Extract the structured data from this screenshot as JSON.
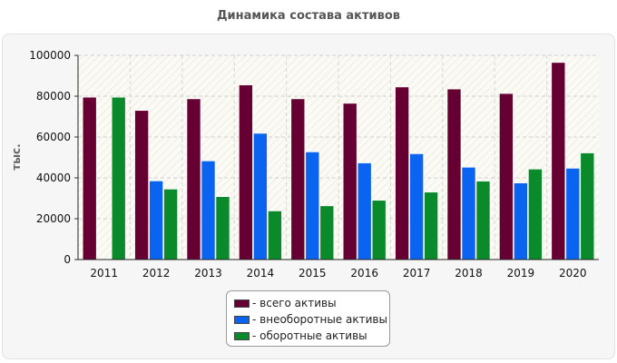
{
  "chart_data": {
    "type": "bar",
    "title": "Динамика состава активов",
    "ylabel": "тыс.",
    "xlabel": "",
    "ylim": [
      0,
      100000
    ],
    "yticks": [
      0,
      20000,
      40000,
      60000,
      80000,
      100000
    ],
    "grid": true,
    "legend_position": "bottom-center",
    "categories": [
      "2011",
      "2012",
      "2013",
      "2014",
      "2015",
      "2016",
      "2017",
      "2018",
      "2019",
      "2020"
    ],
    "series": [
      {
        "name": "- всего активы",
        "color": "#660033",
        "values": [
          79500,
          73000,
          78700,
          85500,
          78700,
          76500,
          84500,
          83500,
          81300,
          96500
        ]
      },
      {
        "name": "- внеоборотные активы",
        "color": "#0a64f0",
        "values": [
          300,
          38500,
          48300,
          61800,
          52700,
          47300,
          51800,
          45200,
          37500,
          44700
        ]
      },
      {
        "name": "- оборотные активы",
        "color": "#0a8a2a",
        "values": [
          79500,
          34500,
          30800,
          23800,
          26300,
          29000,
          33000,
          38400,
          44300,
          52200
        ]
      }
    ]
  }
}
